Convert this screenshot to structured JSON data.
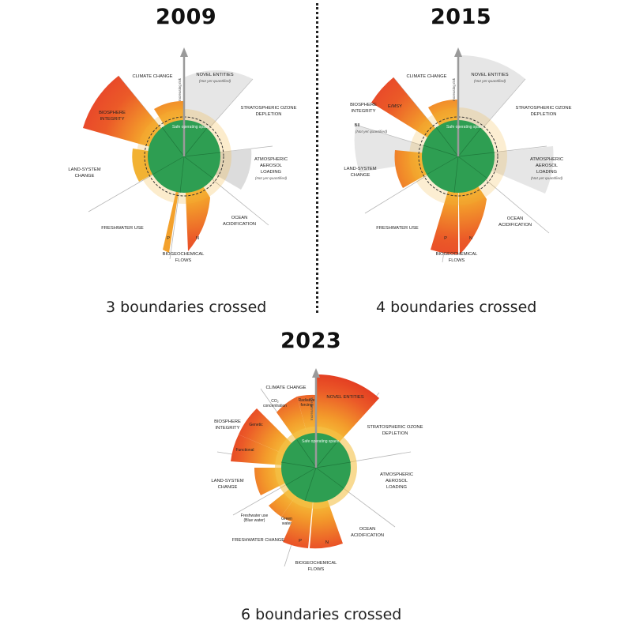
{
  "diagrams": [
    {
      "id": "d2009",
      "year": "2009",
      "caption": "3 boundaries crossed",
      "labels": [
        {
          "key": "climate",
          "text": "CLIMATE CHANGE"
        },
        {
          "key": "novel",
          "text": "NOVEL ENTITIES"
        },
        {
          "key": "novel_sub",
          "text": "(Not yet quantified)"
        },
        {
          "key": "ozone1",
          "text": "STRATOSPHERIC OZONE"
        },
        {
          "key": "ozone2",
          "text": "DEPLETION"
        },
        {
          "key": "aero1",
          "text": "ATMOSPHERIC"
        },
        {
          "key": "aero2",
          "text": "AEROSOL"
        },
        {
          "key": "aero3",
          "text": "LOADING"
        },
        {
          "key": "aero_sub",
          "text": "(Not yet quantified)"
        },
        {
          "key": "ocean1",
          "text": "OCEAN"
        },
        {
          "key": "ocean2",
          "text": "ACIDIFICATION"
        },
        {
          "key": "bio1",
          "text": "BIOGEOCHEMICAL"
        },
        {
          "key": "bio2",
          "text": "FLOWS"
        },
        {
          "key": "p",
          "text": "P"
        },
        {
          "key": "n",
          "text": "N"
        },
        {
          "key": "fresh",
          "text": "FRESHWATER USE"
        },
        {
          "key": "land1",
          "text": "LAND-SYSTEM"
        },
        {
          "key": "land2",
          "text": "CHANGE"
        },
        {
          "key": "bios1",
          "text": "BIOSPHERE"
        },
        {
          "key": "bios2",
          "text": "INTEGRITY"
        },
        {
          "key": "axis",
          "text": "Increasing risk"
        },
        {
          "key": "safe",
          "text": "Safe operating space"
        }
      ]
    },
    {
      "id": "d2015",
      "year": "2015",
      "caption": "4 boundaries crossed",
      "labels": [
        {
          "key": "climate",
          "text": "CLIMATE CHANGE"
        },
        {
          "key": "novel",
          "text": "NOVEL ENTITIES"
        },
        {
          "key": "novel_sub",
          "text": "(Not yet quantified)"
        },
        {
          "key": "ozone1",
          "text": "STRATOSPHERIC OZONE"
        },
        {
          "key": "ozone2",
          "text": "DEPLETION"
        },
        {
          "key": "aero1",
          "text": "ATMOSPHERIC"
        },
        {
          "key": "aero2",
          "text": "AEROSOL"
        },
        {
          "key": "aero3",
          "text": "LOADING"
        },
        {
          "key": "aero_sub",
          "text": "(Not yet quantified)"
        },
        {
          "key": "ocean1",
          "text": "OCEAN"
        },
        {
          "key": "ocean2",
          "text": "ACIDIFICATION"
        },
        {
          "key": "bio1",
          "text": "BIOGEOCHEMICAL"
        },
        {
          "key": "bio2",
          "text": "FLOWS"
        },
        {
          "key": "p",
          "text": "P"
        },
        {
          "key": "n",
          "text": "N"
        },
        {
          "key": "fresh",
          "text": "FRESHWATER USE"
        },
        {
          "key": "land1",
          "text": "LAND-SYSTEM"
        },
        {
          "key": "land2",
          "text": "CHANGE"
        },
        {
          "key": "bios1",
          "text": "BIOSPHERE"
        },
        {
          "key": "bios2",
          "text": "INTEGRITY"
        },
        {
          "key": "emsy",
          "text": "E/MSY"
        },
        {
          "key": "bii",
          "text": "BII"
        },
        {
          "key": "bii_sub",
          "text": "(Not yet quantified)"
        },
        {
          "key": "axis",
          "text": "Increasing risk"
        },
        {
          "key": "safe",
          "text": "Safe operating space"
        }
      ]
    },
    {
      "id": "d2023",
      "year": "2023",
      "caption": "6 boundaries crossed",
      "labels": [
        {
          "key": "climate",
          "text": "CLIMATE CHANGE"
        },
        {
          "key": "co2a",
          "text": "CO₂"
        },
        {
          "key": "co2b",
          "text": "concentration"
        },
        {
          "key": "rad1",
          "text": "Radiative"
        },
        {
          "key": "rad2",
          "text": "forcing"
        },
        {
          "key": "novel",
          "text": "NOVEL ENTITIES"
        },
        {
          "key": "ozone1",
          "text": "STRATOSPHERIC OZONE"
        },
        {
          "key": "ozone2",
          "text": "DEPLETION"
        },
        {
          "key": "aero1",
          "text": "ATMOSPHERIC"
        },
        {
          "key": "aero2",
          "text": "AEROSOL"
        },
        {
          "key": "aero3",
          "text": "LOADING"
        },
        {
          "key": "ocean1",
          "text": "OCEAN"
        },
        {
          "key": "ocean2",
          "text": "ACIDIFICATION"
        },
        {
          "key": "bio1",
          "text": "BIOGEOCHEMICAL"
        },
        {
          "key": "bio2",
          "text": "FLOWS"
        },
        {
          "key": "p",
          "text": "P"
        },
        {
          "key": "n",
          "text": "N"
        },
        {
          "key": "fresh",
          "text": "FRESHWATER CHANGE"
        },
        {
          "key": "blue1",
          "text": "Freshwater use"
        },
        {
          "key": "blue2",
          "text": "(Blue water)"
        },
        {
          "key": "green1",
          "text": "Green"
        },
        {
          "key": "green2",
          "text": "water"
        },
        {
          "key": "land1",
          "text": "LAND-SYSTEM"
        },
        {
          "key": "land2",
          "text": "CHANGE"
        },
        {
          "key": "bios1",
          "text": "BIOSPHERE"
        },
        {
          "key": "bios2",
          "text": "INTEGRITY"
        },
        {
          "key": "genetic",
          "text": "Genetic"
        },
        {
          "key": "functional",
          "text": "Functional"
        },
        {
          "key": "axis",
          "text": "Increasing risk"
        },
        {
          "key": "safe",
          "text": "Safe operating space"
        }
      ]
    }
  ],
  "colors": {
    "safe_green": "#2e9e52",
    "zone_yellow": "#f2b233",
    "zone_orange": "#f08a24",
    "zone_red": "#e8452a",
    "unquantified_gray": "#d9d9d9",
    "line_gray": "#8f8f8f"
  }
}
